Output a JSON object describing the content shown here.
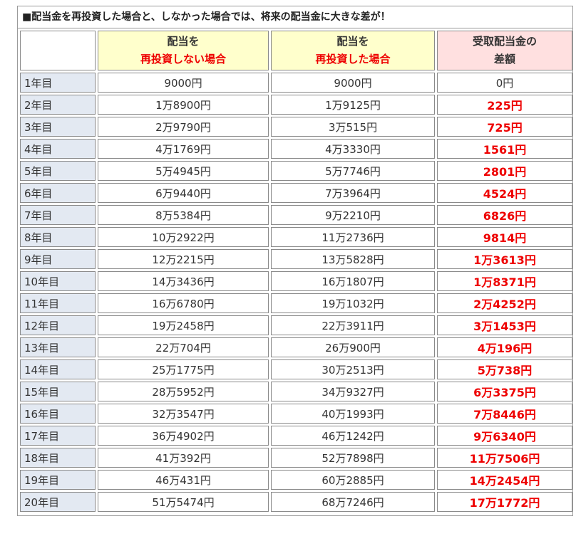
{
  "title": "■配当金を再投資した場合と、しなかった場合では、将来の配当金に大きな差が！",
  "headers": {
    "no_reinvest_line1": "配当を",
    "no_reinvest_line2": "再投資しない場合",
    "reinvest_line1": "配当を",
    "reinvest_line2": "再投資した場合",
    "diff_line1": "受取配当金の",
    "diff_line2": "差額"
  },
  "colors": {
    "header_yellow": "#ffffcc",
    "header_pink": "#ffe0e0",
    "row_label_bg": "#e3e9f2",
    "accent_red": "#ee0000"
  },
  "rows": [
    {
      "year": "1年目",
      "no_reinvest": "9000円",
      "reinvest": "9000円",
      "diff": "0円"
    },
    {
      "year": "2年目",
      "no_reinvest": "1万8900円",
      "reinvest": "1万9125円",
      "diff": "225円"
    },
    {
      "year": "3年目",
      "no_reinvest": "2万9790円",
      "reinvest": "3万515円",
      "diff": "725円"
    },
    {
      "year": "4年目",
      "no_reinvest": "4万1769円",
      "reinvest": "4万3330円",
      "diff": "1561円"
    },
    {
      "year": "5年目",
      "no_reinvest": "5万4945円",
      "reinvest": "5万7746円",
      "diff": "2801円"
    },
    {
      "year": "6年目",
      "no_reinvest": "6万9440円",
      "reinvest": "7万3964円",
      "diff": "4524円"
    },
    {
      "year": "7年目",
      "no_reinvest": "8万5384円",
      "reinvest": "9万2210円",
      "diff": "6826円"
    },
    {
      "year": "8年目",
      "no_reinvest": "10万2922円",
      "reinvest": "11万2736円",
      "diff": "9814円"
    },
    {
      "year": "9年目",
      "no_reinvest": "12万2215円",
      "reinvest": "13万5828円",
      "diff": "1万3613円"
    },
    {
      "year": "10年目",
      "no_reinvest": "14万3436円",
      "reinvest": "16万1807円",
      "diff": "1万8371円"
    },
    {
      "year": "11年目",
      "no_reinvest": "16万6780円",
      "reinvest": "19万1032円",
      "diff": "2万4252円"
    },
    {
      "year": "12年目",
      "no_reinvest": "19万2458円",
      "reinvest": "22万3911円",
      "diff": "3万1453円"
    },
    {
      "year": "13年目",
      "no_reinvest": "22万704円",
      "reinvest": "26万900円",
      "diff": "4万196円"
    },
    {
      "year": "14年目",
      "no_reinvest": "25万1775円",
      "reinvest": "30万2513円",
      "diff": "5万738円"
    },
    {
      "year": "15年目",
      "no_reinvest": "28万5952円",
      "reinvest": "34万9327円",
      "diff": "6万3375円"
    },
    {
      "year": "16年目",
      "no_reinvest": "32万3547円",
      "reinvest": "40万1993円",
      "diff": "7万8446円"
    },
    {
      "year": "17年目",
      "no_reinvest": "36万4902円",
      "reinvest": "46万1242円",
      "diff": "9万6340円"
    },
    {
      "year": "18年目",
      "no_reinvest": "41万392円",
      "reinvest": "52万7898円",
      "diff": "11万7506円"
    },
    {
      "year": "19年目",
      "no_reinvest": "46万431円",
      "reinvest": "60万2885円",
      "diff": "14万2454円"
    },
    {
      "year": "20年目",
      "no_reinvest": "51万5474円",
      "reinvest": "68万7246円",
      "diff": "17万1772円"
    }
  ]
}
